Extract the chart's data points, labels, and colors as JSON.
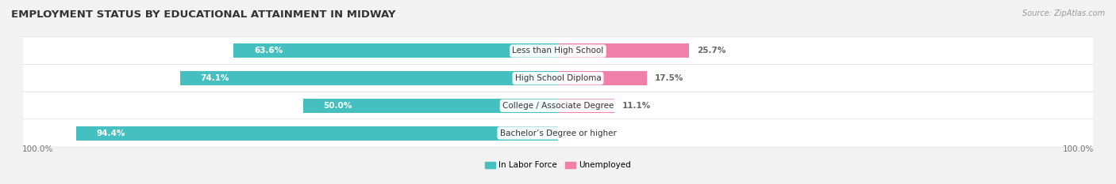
{
  "title": "EMPLOYMENT STATUS BY EDUCATIONAL ATTAINMENT IN MIDWAY",
  "source": "Source: ZipAtlas.com",
  "categories": [
    "Less than High School",
    "High School Diploma",
    "College / Associate Degree",
    "Bachelor’s Degree or higher"
  ],
  "labor_force": [
    63.6,
    74.1,
    50.0,
    94.4
  ],
  "unemployed": [
    25.7,
    17.5,
    11.1,
    0.0
  ],
  "labor_force_color": "#45BFBF",
  "unemployed_color": "#F080A8",
  "bar_height": 0.52,
  "background_color": "#f2f2f2",
  "row_bg_color": "#ffffff",
  "legend_labels": [
    "In Labor Force",
    "Unemployed"
  ],
  "bottom_left_label": "100.0%",
  "bottom_right_label": "100.0%",
  "title_fontsize": 9.5,
  "label_fontsize": 7.5,
  "category_fontsize": 7.5,
  "source_fontsize": 7.0,
  "axis_scale": 100
}
